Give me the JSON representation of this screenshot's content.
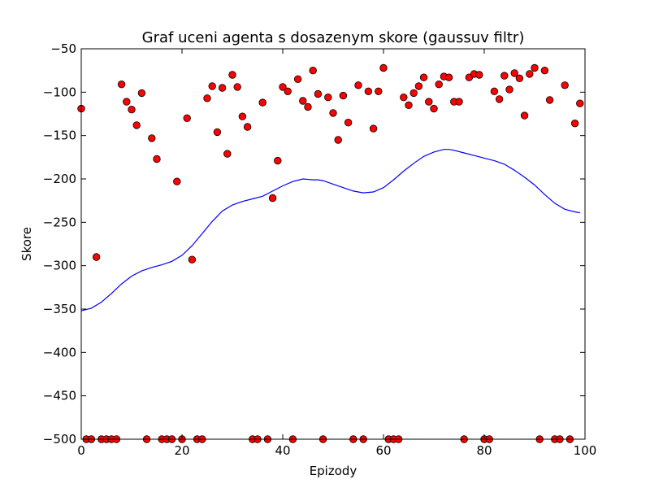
{
  "chart_data": {
    "type": "scatter",
    "title": "Graf uceni agenta s dosazenym skore (gaussuv filtr)",
    "xlabel": "Epizody",
    "ylabel": "Skore",
    "xlim": [
      0,
      100
    ],
    "ylim": [
      -500,
      -50
    ],
    "x_ticks": [
      0,
      20,
      40,
      60,
      80,
      100
    ],
    "y_ticks": [
      -500,
      -450,
      -400,
      -350,
      -300,
      -250,
      -200,
      -150,
      -100,
      -50
    ],
    "x_tick_labels": [
      "0",
      "20",
      "40",
      "60",
      "80",
      "100"
    ],
    "y_tick_labels": [
      "−500",
      "−450",
      "−400",
      "−350",
      "−300",
      "−250",
      "−200",
      "−150",
      "−100",
      "−50"
    ],
    "grid": false,
    "colors": {
      "points": "#ff0000",
      "point_edge": "#000000",
      "line": "#0000ff"
    },
    "series": [
      {
        "kind": "scatter",
        "x": [
          0,
          1,
          2,
          3,
          4,
          5,
          6,
          7,
          8,
          9,
          10,
          11,
          12,
          13,
          14,
          15,
          16,
          17,
          18,
          19,
          20,
          21,
          22,
          23,
          24,
          25,
          26,
          27,
          28,
          29,
          30,
          31,
          32,
          33,
          34,
          35,
          36,
          37,
          38,
          39,
          40,
          41,
          42,
          43,
          44,
          45,
          46,
          47,
          48,
          49,
          50,
          51,
          52,
          53,
          54,
          55,
          56,
          57,
          58,
          59,
          60,
          61,
          62,
          63,
          64,
          65,
          66,
          67,
          68,
          69,
          70,
          71,
          72,
          73,
          74,
          75,
          76,
          77,
          78,
          79,
          80,
          81,
          82,
          83,
          84,
          85,
          86,
          87,
          88,
          89,
          90,
          91,
          92,
          93,
          94,
          95,
          96,
          97,
          98,
          99
        ],
        "y": [
          -119,
          -500,
          -500,
          -290,
          -500,
          -500,
          -500,
          -500,
          -91,
          -111,
          -120,
          -138,
          -101,
          -500,
          -153,
          -177,
          -500,
          -500,
          -500,
          -203,
          -500,
          -130,
          -293,
          -500,
          -500,
          -107,
          -93,
          -146,
          -95,
          -171,
          -80,
          -94,
          -128,
          -140,
          -500,
          -500,
          -112,
          -500,
          -222,
          -179,
          -94,
          -99,
          -500,
          -85,
          -110,
          -117,
          -75,
          -102,
          -500,
          -106,
          -124,
          -155,
          -104,
          -135,
          -500,
          -92,
          -500,
          -99,
          -142,
          -99,
          -72,
          -500,
          -500,
          -500,
          -106,
          -115,
          -101,
          -93,
          -83,
          -111,
          -119,
          -91,
          -82,
          -83,
          -111,
          -111,
          -500,
          -83,
          -79,
          -80,
          -500,
          -500,
          -99,
          -108,
          -81,
          -97,
          -78,
          -84,
          -127,
          -79,
          -72,
          -500,
          -75,
          -109,
          -500,
          -500,
          -92,
          -500,
          -136,
          -113
        ]
      },
      {
        "kind": "line",
        "x": [
          0,
          2,
          4,
          6,
          8,
          10,
          12,
          14,
          16,
          18,
          20,
          22,
          24,
          26,
          28,
          30,
          32,
          34,
          36,
          38,
          40,
          42,
          44,
          46,
          47,
          48,
          50,
          52,
          54,
          56,
          58,
          60,
          62,
          64,
          66,
          68,
          70,
          72,
          73,
          74,
          76,
          78,
          80,
          82,
          84,
          86,
          88,
          90,
          92,
          94,
          96,
          98,
          99
        ],
        "y": [
          -352,
          -349,
          -342,
          -332,
          -321,
          -312,
          -306,
          -302,
          -299,
          -295,
          -288,
          -277,
          -263,
          -249,
          -237,
          -230,
          -226,
          -223,
          -220,
          -214,
          -208,
          -203,
          -200,
          -201,
          -201,
          -202,
          -206,
          -210,
          -214,
          -216,
          -215,
          -210,
          -201,
          -191,
          -182,
          -174,
          -169,
          -166,
          -166,
          -167,
          -170,
          -173,
          -176,
          -179,
          -183,
          -190,
          -198,
          -207,
          -218,
          -228,
          -235,
          -238,
          -239
        ]
      }
    ]
  }
}
